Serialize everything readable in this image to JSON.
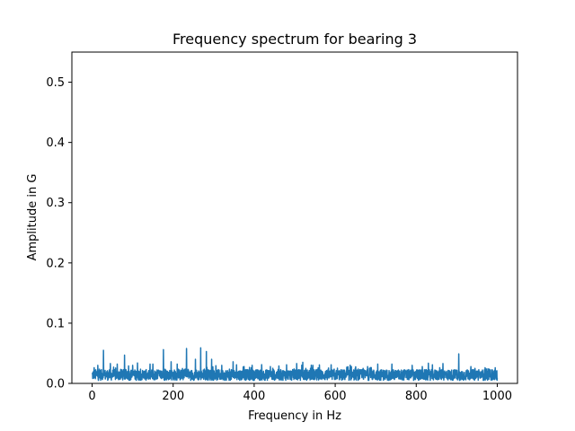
{
  "chart_data": {
    "type": "line",
    "title": "Frequency spectrum for bearing 3",
    "xlabel": "Frequency in Hz",
    "ylabel": "Amplitude in G",
    "xlim": [
      -50,
      1050
    ],
    "ylim": [
      0,
      0.55
    ],
    "xticks": [
      0,
      200,
      400,
      600,
      800,
      1000
    ],
    "xtick_labels": [
      "0",
      "200",
      "400",
      "600",
      "800",
      "1000"
    ],
    "yticks": [
      0,
      0.1,
      0.2,
      0.3,
      0.4,
      0.5
    ],
    "ytick_labels": [
      "0.0",
      "0.1",
      "0.2",
      "0.3",
      "0.4",
      "0.5"
    ],
    "grid": false,
    "series": [
      {
        "color": "#1f77b4",
        "points": {
          "x_start": 0,
          "x_end": 1000,
          "baseline": 0.014,
          "noise": 0.009,
          "peaks": [
            {
              "x": 5,
              "y": 0.026
            },
            {
              "x": 14,
              "y": 0.03
            },
            {
              "x": 28,
              "y": 0.055
            },
            {
              "x": 45,
              "y": 0.033
            },
            {
              "x": 62,
              "y": 0.032
            },
            {
              "x": 80,
              "y": 0.047
            },
            {
              "x": 100,
              "y": 0.03
            },
            {
              "x": 112,
              "y": 0.034
            },
            {
              "x": 150,
              "y": 0.032
            },
            {
              "x": 176,
              "y": 0.056
            },
            {
              "x": 195,
              "y": 0.036
            },
            {
              "x": 210,
              "y": 0.032
            },
            {
              "x": 233,
              "y": 0.058
            },
            {
              "x": 255,
              "y": 0.04
            },
            {
              "x": 268,
              "y": 0.059
            },
            {
              "x": 282,
              "y": 0.053
            },
            {
              "x": 295,
              "y": 0.04
            },
            {
              "x": 320,
              "y": 0.03
            },
            {
              "x": 348,
              "y": 0.036
            },
            {
              "x": 375,
              "y": 0.028
            },
            {
              "x": 395,
              "y": 0.03
            },
            {
              "x": 440,
              "y": 0.028
            },
            {
              "x": 480,
              "y": 0.031
            },
            {
              "x": 505,
              "y": 0.033
            },
            {
              "x": 520,
              "y": 0.035
            },
            {
              "x": 545,
              "y": 0.03
            },
            {
              "x": 590,
              "y": 0.031
            },
            {
              "x": 640,
              "y": 0.028
            },
            {
              "x": 680,
              "y": 0.028
            },
            {
              "x": 705,
              "y": 0.032
            },
            {
              "x": 740,
              "y": 0.032
            },
            {
              "x": 790,
              "y": 0.03
            },
            {
              "x": 815,
              "y": 0.028
            },
            {
              "x": 840,
              "y": 0.031
            },
            {
              "x": 866,
              "y": 0.033
            },
            {
              "x": 905,
              "y": 0.049
            },
            {
              "x": 935,
              "y": 0.028
            },
            {
              "x": 970,
              "y": 0.026
            },
            {
              "x": 995,
              "y": 0.026
            }
          ]
        }
      }
    ]
  }
}
